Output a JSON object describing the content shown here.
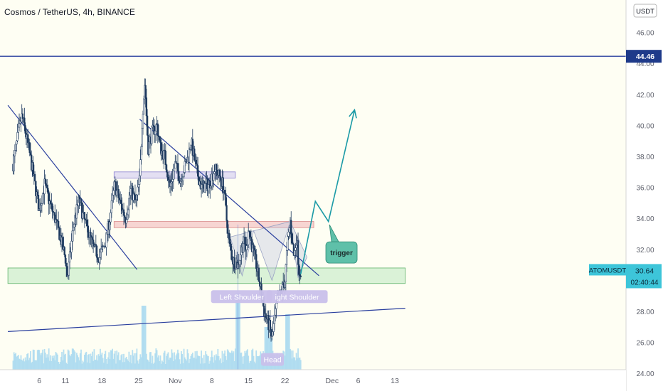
{
  "header": {
    "symbol_title": "Cosmos / TetherUS, 4h, BINANCE",
    "currency_badge": "USDT"
  },
  "colors": {
    "background": "#fefef3",
    "candle_up": "#ffffff",
    "candle_down": "#1e3a5f",
    "volume": "#a9d9f0",
    "trendline": "#2a3f9e",
    "projection": "#1a9aa6",
    "resistance_zone": "#f4c7c7",
    "support_zone": "#cdeecd",
    "upper_zone": "#d9d4f1",
    "label_bg": "#c9c0ea",
    "trigger_bg": "#5fc0a9",
    "price_tag": "#3dc5d9"
  },
  "chart_data": {
    "type": "candlestick",
    "symbol": "ATOMUSDT",
    "timeframe": "4h",
    "exchange": "BINANCE",
    "y_axis": {
      "range": [
        22.6,
        46.2
      ],
      "ticks": [
        24.0,
        26.0,
        28.0,
        30.0,
        32.0,
        34.0,
        36.0,
        38.0,
        40.0,
        42.0,
        44.0,
        46.0
      ],
      "tick_labels": [
        "24.00",
        "26.00",
        "28.00",
        "30.00",
        "32.00",
        "34.00",
        "36.00",
        "38.00",
        "40.00",
        "42.00",
        "44.00",
        "46.00"
      ]
    },
    "x_axis": {
      "ticks": [
        {
          "day": 6,
          "label": "6"
        },
        {
          "day": 11,
          "label": "11"
        },
        {
          "day": 18,
          "label": "18"
        },
        {
          "day": 25,
          "label": "25"
        },
        {
          "day": 32,
          "label": "Nov"
        },
        {
          "day": 39,
          "label": "8"
        },
        {
          "day": 46,
          "label": "15"
        },
        {
          "day": 53,
          "label": "22"
        },
        {
          "day": 62,
          "label": "Dec"
        },
        {
          "day": 67,
          "label": "6"
        },
        {
          "day": 74,
          "label": "13"
        }
      ],
      "data_start_day": 1,
      "data_end_day": 56
    },
    "price_path": [
      [
        1,
        37.5
      ],
      [
        2,
        39.5
      ],
      [
        2.7,
        40.6
      ],
      [
        4,
        38.5
      ],
      [
        5,
        36.5
      ],
      [
        6,
        34.5
      ],
      [
        7,
        36.2
      ],
      [
        8,
        35.0
      ],
      [
        9,
        34.0
      ],
      [
        10,
        32.8
      ],
      [
        11,
        31.4
      ],
      [
        11.4,
        30.1
      ],
      [
        12.5,
        33.5
      ],
      [
        13.6,
        35.2
      ],
      [
        14.5,
        34.0
      ],
      [
        15.5,
        33.0
      ],
      [
        16.5,
        32.0
      ],
      [
        17.5,
        31.5
      ],
      [
        18.7,
        32.5
      ],
      [
        19.5,
        34.0
      ],
      [
        20.4,
        36.2
      ],
      [
        21.5,
        35.0
      ],
      [
        22.5,
        34.0
      ],
      [
        23.5,
        35.8
      ],
      [
        24.5,
        35.0
      ],
      [
        25.2,
        36.5
      ],
      [
        25.7,
        40.5
      ],
      [
        26.2,
        42.8
      ],
      [
        26.8,
        38.5
      ],
      [
        27.5,
        39.5
      ],
      [
        28.5,
        40.0
      ],
      [
        29.2,
        38.5
      ],
      [
        30.0,
        38.0
      ],
      [
        31.0,
        36.0
      ],
      [
        32.0,
        37.5
      ],
      [
        33.0,
        36.5
      ],
      [
        34.5,
        38.0
      ],
      [
        35.0,
        39.0
      ],
      [
        36.0,
        37.2
      ],
      [
        37.0,
        36.0
      ],
      [
        38.5,
        36.2
      ],
      [
        39.5,
        37.2
      ],
      [
        40.5,
        36.7
      ],
      [
        41.3,
        36.0
      ],
      [
        41.8,
        34.0
      ],
      [
        42.3,
        32.5
      ],
      [
        43.0,
        31.3
      ],
      [
        44.0,
        31.0
      ],
      [
        45.0,
        32.5
      ],
      [
        45.7,
        32.0
      ],
      [
        46.0,
        33.5
      ],
      [
        46.5,
        32.5
      ],
      [
        47.5,
        31.0
      ],
      [
        48.3,
        29.5
      ],
      [
        49.0,
        28.0
      ],
      [
        50.0,
        27.0
      ],
      [
        50.5,
        26.2
      ],
      [
        51.2,
        28.0
      ],
      [
        52.2,
        29.3
      ],
      [
        53.0,
        30.0
      ],
      [
        53.5,
        32.5
      ],
      [
        54.0,
        33.8
      ],
      [
        54.7,
        31.5
      ],
      [
        55.2,
        32.8
      ],
      [
        55.7,
        30.5
      ],
      [
        56.0,
        30.64
      ]
    ],
    "last_price": 30.64,
    "last_price_label": "30.64",
    "countdown": "02:40:44",
    "symbol_tag": "ATOMUSDT",
    "horizontal_line": {
      "price": 44.46,
      "label": "44.46"
    },
    "zones": [
      {
        "name": "upper-zone",
        "low": 36.6,
        "high": 37.0,
        "from_day": 20.3,
        "to_day": 43.5
      },
      {
        "name": "resistance-zone",
        "low": 33.4,
        "high": 33.8,
        "from_day": 20.3,
        "to_day": 58.5
      },
      {
        "name": "support-zone",
        "low": 29.8,
        "high": 30.8,
        "from_day": 0,
        "to_day": 76
      }
    ],
    "trendlines": [
      {
        "name": "descending-trendline-left",
        "points": [
          [
            0,
            41.3
          ],
          [
            24.7,
            30.7
          ]
        ]
      },
      {
        "name": "descending-trendline-right",
        "points": [
          [
            25.2,
            40.4
          ],
          [
            59.5,
            30.3
          ]
        ]
      },
      {
        "name": "ascending-trendline",
        "points": [
          [
            0,
            26.7
          ],
          [
            76,
            28.2
          ]
        ]
      }
    ],
    "projection_path": [
      [
        56.0,
        30.4
      ],
      [
        58.8,
        35.1
      ],
      [
        61.3,
        33.8
      ],
      [
        66.3,
        41.0
      ]
    ],
    "pattern": {
      "left_shoulder": [
        [
          42.5,
          32.8
        ],
        [
          44.8,
          30.3
        ],
        [
          47.0,
          33.2
        ]
      ],
      "head_bounds": [
        [
          47.0,
          33.2
        ],
        [
          54.0,
          33.8
        ],
        [
          50.5,
          30.0
        ]
      ],
      "right_shoulder": [
        [
          54.0,
          33.8
        ],
        [
          55.5,
          30.2
        ],
        [
          57.2,
          31.5
        ]
      ]
    },
    "annotations": [
      {
        "name": "left-shoulder-label",
        "text": "Left Shoulder",
        "day": 44.7,
        "price": 28.95
      },
      {
        "name": "head-label",
        "text": "Head",
        "day": 50.6,
        "price": 24.9
      },
      {
        "name": "right-shoulder-label",
        "text": "ight Shoulder",
        "day": 55.3,
        "price": 28.95
      },
      {
        "name": "trigger-label",
        "text": "trigger",
        "day": 63.8,
        "price": 31.8
      }
    ]
  }
}
